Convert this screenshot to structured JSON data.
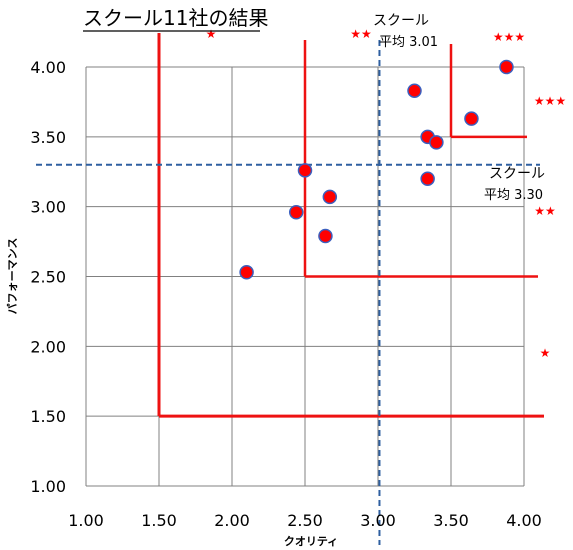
{
  "colors": {
    "grid": "#808080",
    "marker_fill": "#ff0000",
    "marker_stroke": "#3b5fbf",
    "threshold_line": "#ee1111",
    "average_line": "#2e5fa0",
    "star": "#ff0000",
    "text": "#000000"
  },
  "chart_data": {
    "type": "scatter",
    "title": "スクール11社の結果",
    "xlabel": "クオリティ",
    "ylabel": "パフォーマンス",
    "xlim": [
      1.0,
      4.0
    ],
    "ylim": [
      1.0,
      4.0
    ],
    "x_ticks": [
      "1.00",
      "1.50",
      "2.00",
      "2.50",
      "3.00",
      "3.50",
      "4.00"
    ],
    "y_ticks": [
      "1.00",
      "1.50",
      "2.00",
      "2.50",
      "3.00",
      "3.50",
      "4.00"
    ],
    "grid": true,
    "points": [
      {
        "x": 2.1,
        "y": 2.53
      },
      {
        "x": 2.44,
        "y": 2.96
      },
      {
        "x": 2.5,
        "y": 3.26
      },
      {
        "x": 2.64,
        "y": 2.79
      },
      {
        "x": 2.67,
        "y": 3.07
      },
      {
        "x": 3.25,
        "y": 3.83
      },
      {
        "x": 3.34,
        "y": 3.5
      },
      {
        "x": 3.34,
        "y": 3.2
      },
      {
        "x": 3.4,
        "y": 3.46
      },
      {
        "x": 3.64,
        "y": 3.63
      },
      {
        "x": 3.88,
        "y": 4.0
      }
    ],
    "average_lines": {
      "x": {
        "value": 3.01,
        "label_line1": "スクール",
        "label_line2": "平均 3.01"
      },
      "y": {
        "value": 3.3,
        "label_line1": "スクール",
        "label_line2": "平均 3.30"
      }
    },
    "threshold_regions": [
      {
        "x": 1.5,
        "y": 1.5,
        "stars": "★"
      },
      {
        "x": 2.5,
        "y": 2.5,
        "stars": "★★"
      },
      {
        "x": 3.5,
        "y": 3.5,
        "stars": "★★★"
      }
    ]
  }
}
